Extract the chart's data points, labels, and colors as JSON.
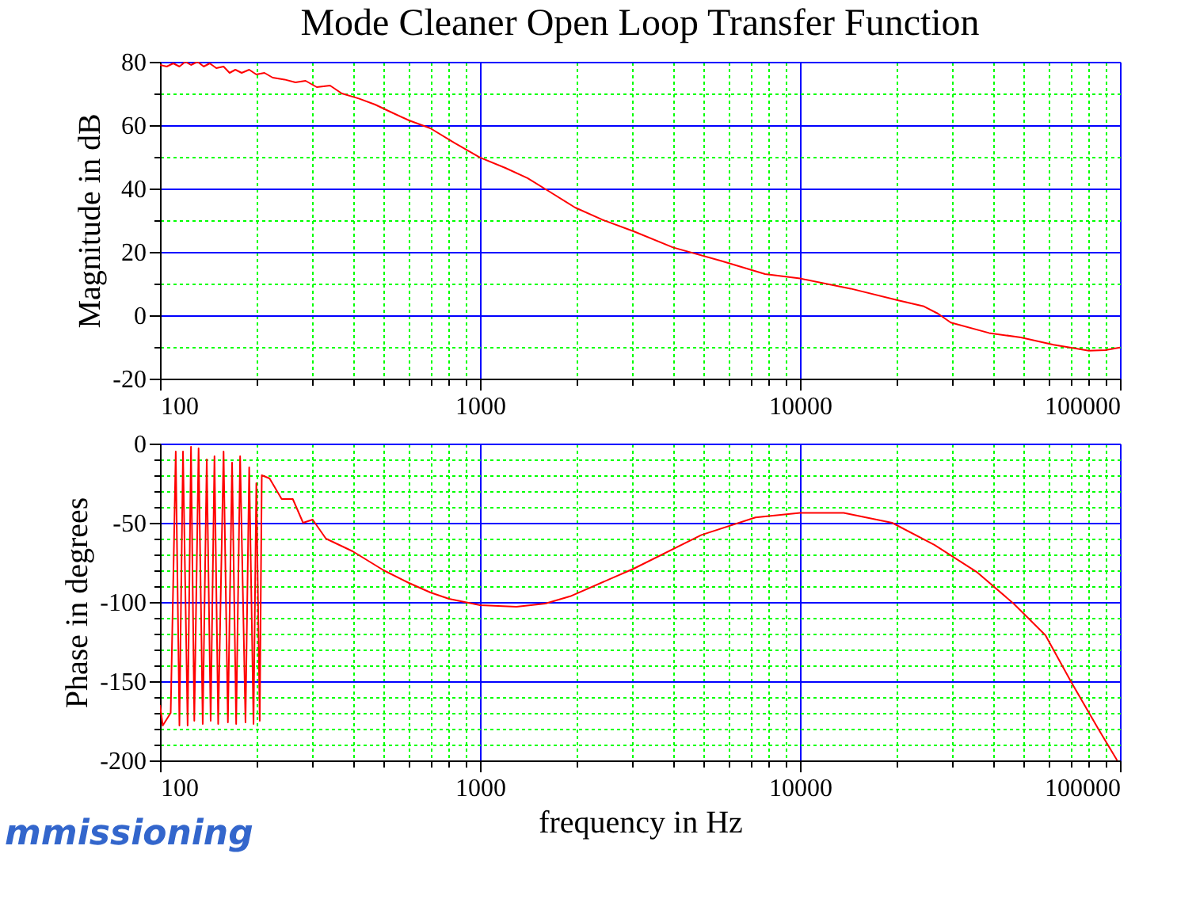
{
  "chart_data": [
    {
      "type": "line",
      "title": "Mode Cleaner Open Loop Transfer Function",
      "ylabel": "Magnitude in dB",
      "log": "x",
      "grid": true,
      "xlim": [
        100,
        100000
      ],
      "ylim": [
        -20,
        80
      ],
      "xticks": [
        100,
        {
          "value": 200,
          "label": null
        },
        {
          "value": 300,
          "label": null
        },
        {
          "value": 400,
          "label": null
        },
        {
          "value": 500,
          "label": null
        },
        {
          "value": 600,
          "label": null
        },
        {
          "value": 700,
          "label": null
        },
        {
          "value": 800,
          "label": null
        },
        {
          "value": 900,
          "label": null
        },
        1000,
        {
          "value": 2000,
          "label": null
        },
        {
          "value": 3000,
          "label": null
        },
        {
          "value": 4000,
          "label": null
        },
        {
          "value": 5000,
          "label": null
        },
        {
          "value": 6000,
          "label": null
        },
        {
          "value": 7000,
          "label": null
        },
        {
          "value": 8000,
          "label": null
        },
        {
          "value": 9000,
          "label": null
        },
        10000,
        {
          "value": 20000,
          "label": null
        },
        {
          "value": 30000,
          "label": null
        },
        {
          "value": 40000,
          "label": null
        },
        {
          "value": 50000,
          "label": null
        },
        {
          "value": 60000,
          "label": null
        },
        {
          "value": 70000,
          "label": null
        },
        {
          "value": 80000,
          "label": null
        },
        {
          "value": 90000,
          "label": null
        },
        100000
      ],
      "yticks": [
        -20,
        {
          "value": -10,
          "label": null
        },
        0,
        {
          "value": 10,
          "label": null
        },
        20,
        {
          "value": 30,
          "label": null
        },
        40,
        {
          "value": 50,
          "label": null
        },
        60,
        {
          "value": 70,
          "label": null
        },
        80
      ],
      "series": [
        {
          "color": "#ff0000",
          "x": [
            100,
            105,
            110,
            115,
            120,
            125,
            131,
            137,
            143,
            150,
            158,
            165,
            172,
            180,
            190,
            200,
            212,
            225,
            245,
            265,
            285,
            309,
            340,
            370,
            418,
            470,
            530,
            600,
            700,
            832,
            1000,
            1200,
            1408,
            1650,
            1982,
            2405,
            3020,
            4010,
            5660,
            7780,
            10000,
            14400,
            20300,
            24400,
            27000,
            29600,
            39000,
            49000,
            62000,
            80000,
            90000,
            100000
          ],
          "values": [
            79,
            78.5,
            79.5,
            78.5,
            80,
            79,
            80,
            78.5,
            79.5,
            78,
            78.5,
            76.5,
            77.5,
            76.5,
            77.5,
            76,
            76.5,
            75,
            74.4,
            73.5,
            74,
            72,
            72.5,
            70,
            68.4,
            66.5,
            64,
            61.5,
            59,
            54.4,
            49.8,
            46.5,
            43.3,
            39,
            34,
            30.2,
            26.5,
            21.4,
            17.2,
            13,
            11.6,
            8.4,
            4.7,
            2.8,
            0.5,
            -2.3,
            -5.6,
            -7,
            -9.3,
            -11.2,
            -11,
            -10.2
          ]
        }
      ]
    },
    {
      "type": "line",
      "ylabel": "Phase in degrees",
      "xlabel": "frequency in Hz",
      "log": "x",
      "grid": true,
      "annotations": [
        "mmissioning"
      ],
      "xlim": [
        100,
        100000
      ],
      "ylim": [
        -200,
        0
      ],
      "xticks": [
        100,
        {
          "value": 200,
          "label": null
        },
        {
          "value": 300,
          "label": null
        },
        {
          "value": 400,
          "label": null
        },
        {
          "value": 500,
          "label": null
        },
        {
          "value": 600,
          "label": null
        },
        {
          "value": 700,
          "label": null
        },
        {
          "value": 800,
          "label": null
        },
        {
          "value": 900,
          "label": null
        },
        1000,
        {
          "value": 2000,
          "label": null
        },
        {
          "value": 3000,
          "label": null
        },
        {
          "value": 4000,
          "label": null
        },
        {
          "value": 5000,
          "label": null
        },
        {
          "value": 6000,
          "label": null
        },
        {
          "value": 7000,
          "label": null
        },
        {
          "value": 8000,
          "label": null
        },
        {
          "value": 9000,
          "label": null
        },
        10000,
        {
          "value": 20000,
          "label": null
        },
        {
          "value": 30000,
          "label": null
        },
        {
          "value": 40000,
          "label": null
        },
        {
          "value": 50000,
          "label": null
        },
        {
          "value": 60000,
          "label": null
        },
        {
          "value": 70000,
          "label": null
        },
        {
          "value": 80000,
          "label": null
        },
        {
          "value": 90000,
          "label": null
        },
        100000
      ],
      "yticks": [
        -200,
        {
          "value": -190,
          "label": null
        },
        {
          "value": -180,
          "label": null
        },
        {
          "value": -170,
          "label": null
        },
        {
          "value": -160,
          "label": null
        },
        -150,
        {
          "value": -140,
          "label": null
        },
        {
          "value": -130,
          "label": null
        },
        {
          "value": -120,
          "label": null
        },
        {
          "value": -110,
          "label": null
        },
        -100,
        {
          "value": -90,
          "label": null
        },
        {
          "value": -80,
          "label": null
        },
        {
          "value": -70,
          "label": null
        },
        {
          "value": -60,
          "label": null
        },
        -50,
        {
          "value": -40,
          "label": null
        },
        {
          "value": -30,
          "label": null
        },
        {
          "value": -20,
          "label": null
        },
        {
          "value": -10,
          "label": null
        },
        0
      ],
      "series": [
        {
          "color": "#ff0000",
          "x": [
            100,
            102,
            108,
            112,
            115,
            118,
            122,
            125,
            128,
            132,
            136,
            140,
            144,
            148,
            152,
            158,
            163,
            168,
            173,
            178,
            185,
            190,
            196,
            200,
            205,
            208,
            220,
            240,
            260,
            280,
            300,
            330,
            400,
            500,
            600,
            700,
            800,
            1000,
            1300,
            1600,
            1914,
            3020,
            4920,
            7260,
            10000,
            13700,
            19400,
            26300,
            35600,
            46500,
            58500,
            70500,
            85500,
            98000
          ],
          "values": [
            -165,
            -178,
            -170,
            -5,
            -178,
            -5,
            -178,
            -2,
            -175,
            -3,
            -177,
            -10,
            -175,
            -8,
            -177,
            -5,
            -176,
            -12,
            -177,
            -8,
            -176,
            -15,
            -177,
            -25,
            -175,
            -20,
            -22,
            -35,
            -35,
            -50,
            -48,
            -60,
            -68,
            -80,
            -88,
            -94,
            -98,
            -102,
            -103,
            -101,
            -96.4,
            -79,
            -57.7,
            -46.6,
            -43.7,
            -43.7,
            -50,
            -63.9,
            -80.9,
            -101,
            -121,
            -150.7,
            -180,
            -200
          ]
        }
      ]
    }
  ]
}
